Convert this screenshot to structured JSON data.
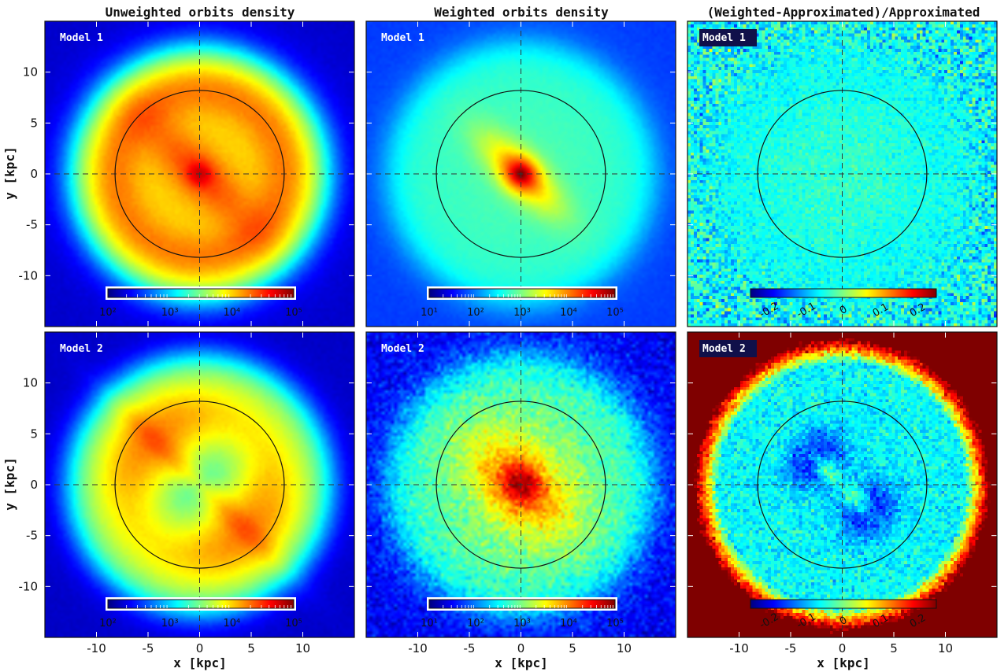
{
  "columns": [
    {
      "title": "Unweighted orbits density"
    },
    {
      "title": "Weighted orbits density"
    },
    {
      "title": "(Weighted-Approximated)/Approximated"
    }
  ],
  "axes": {
    "xlabel": "x [kpc]",
    "ylabel": "y [kpc]"
  },
  "chart_data": {
    "type": "heatmap",
    "xlim": [
      -15,
      15
    ],
    "ylim": [
      -15,
      15
    ],
    "xticks": [
      -10,
      -5,
      0,
      5,
      10
    ],
    "yticks": [
      -10,
      -5,
      0,
      5,
      10
    ],
    "circle_radius_kpc": 8.2,
    "crosshair": "dashed lines at x=0 and y=0",
    "colormap": "jet",
    "panels": [
      {
        "row": 1,
        "col": 1,
        "model": "Model 1",
        "kind": "unweighted",
        "colorbar": {
          "scale": "log",
          "ticks": [
            "10²",
            "10³",
            "10⁴",
            "10⁵"
          ],
          "range": [
            100,
            100000
          ]
        }
      },
      {
        "row": 1,
        "col": 2,
        "model": "Model 1",
        "kind": "weighted",
        "colorbar": {
          "scale": "log",
          "ticks": [
            "10¹",
            "10²",
            "10³",
            "10⁴",
            "10⁵"
          ],
          "range": [
            10,
            100000
          ]
        }
      },
      {
        "row": 1,
        "col": 3,
        "model": "Model 1",
        "kind": "residual",
        "colorbar": {
          "scale": "linear",
          "ticks": [
            "-0.2",
            "-0.1",
            "0",
            "0.1",
            "0.2"
          ],
          "range": [
            -0.25,
            0.25
          ]
        }
      },
      {
        "row": 2,
        "col": 1,
        "model": "Model 2",
        "kind": "unweighted",
        "colorbar": {
          "scale": "log",
          "ticks": [
            "10²",
            "10³",
            "10⁴",
            "10⁵"
          ],
          "range": [
            100,
            100000
          ]
        }
      },
      {
        "row": 2,
        "col": 2,
        "model": "Model 2",
        "kind": "weighted",
        "colorbar": {
          "scale": "log",
          "ticks": [
            "10¹",
            "10²",
            "10³",
            "10⁴",
            "10⁵"
          ],
          "range": [
            10,
            100000
          ]
        }
      },
      {
        "row": 2,
        "col": 3,
        "model": "Model 2",
        "kind": "residual",
        "colorbar": {
          "scale": "linear",
          "ticks": [
            "-0.2",
            "-0.1",
            "0",
            "0.1",
            "0.2"
          ],
          "range": [
            -0.25,
            0.25
          ]
        }
      }
    ]
  }
}
